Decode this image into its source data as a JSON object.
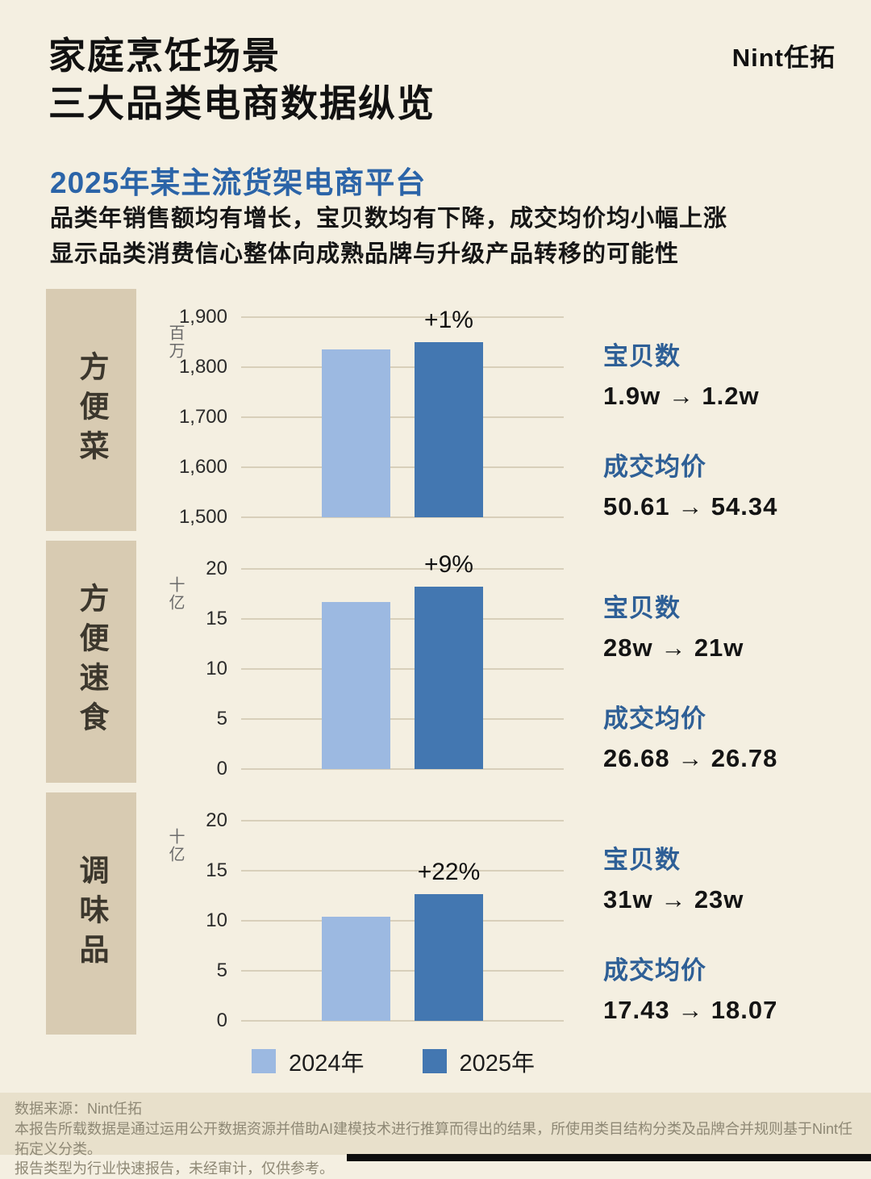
{
  "header": {
    "title_line1": "家庭烹饪场景",
    "title_line2": "三大品类电商数据纵览",
    "logo": "Nint任拓"
  },
  "intro": {
    "subtitle": "2025年某主流货架电商平台",
    "desc_line1": "品类年销售额均有增长，宝贝数均有下降，成交均价均小幅上涨",
    "desc_line2": "显示品类消费信心整体向成熟品牌与升级产品转移的可能性"
  },
  "colors": {
    "background": "#f4efe1",
    "category_box": "#d8cbb2",
    "bar_2024": "#9cb9e1",
    "bar_2025": "#4377b1",
    "accent_blue": "#2e5f96",
    "footer_bg": "#e8e0cb"
  },
  "legend": {
    "items": [
      {
        "label": "2024年",
        "color": "#9cb9e1"
      },
      {
        "label": "2025年",
        "color": "#4377b1"
      }
    ]
  },
  "sections": [
    {
      "category": "方便菜",
      "stats": {
        "items_label": "宝贝数",
        "items_value": "1.9w → 1.2w",
        "price_label": "成交均价",
        "price_value": "50.61 → 54.34"
      }
    },
    {
      "category": "方便速食",
      "stats": {
        "items_label": "宝贝数",
        "items_value": "28w → 21w",
        "price_label": "成交均价",
        "price_value": "26.68 → 26.78"
      }
    },
    {
      "category": "调味品",
      "stats": {
        "items_label": "宝贝数",
        "items_value": "31w → 23w",
        "price_label": "成交均价",
        "price_value": "17.43 → 18.07"
      }
    }
  ],
  "chart_data": [
    {
      "type": "bar",
      "title": "方便菜",
      "categories": [
        "2024年",
        "2025年"
      ],
      "values": [
        1835,
        1850
      ],
      "annotation": "+1%",
      "ylabel": "百万",
      "ylim": [
        1500,
        1900
      ],
      "yticks": [
        1500,
        1600,
        1700,
        1800,
        1900
      ],
      "grid": true,
      "legend_position": "bottom"
    },
    {
      "type": "bar",
      "title": "方便速食",
      "categories": [
        "2024年",
        "2025年"
      ],
      "values": [
        16.7,
        18.2
      ],
      "annotation": "+9%",
      "ylabel": "十亿",
      "ylim": [
        0,
        20
      ],
      "yticks": [
        0,
        5,
        10,
        15,
        20
      ],
      "grid": true,
      "legend_position": "bottom"
    },
    {
      "type": "bar",
      "title": "调味品",
      "categories": [
        "2024年",
        "2025年"
      ],
      "values": [
        10.4,
        12.7
      ],
      "annotation": "+22%",
      "ylabel": "十亿",
      "ylim": [
        0,
        20
      ],
      "yticks": [
        0,
        5,
        10,
        15,
        20
      ],
      "grid": true,
      "legend_position": "bottom"
    }
  ],
  "footer": {
    "source": "数据来源：Nint任拓",
    "disclaimer_line1": "本报告所载数据是通过运用公开数据资源并借助AI建模技术进行推算而得出的结果，所使用类目结构分类及品牌合并规则基于Nint任拓定义分类。",
    "disclaimer_line2": "报告类型为行业快速报告，未经审计，仅供参考。"
  }
}
